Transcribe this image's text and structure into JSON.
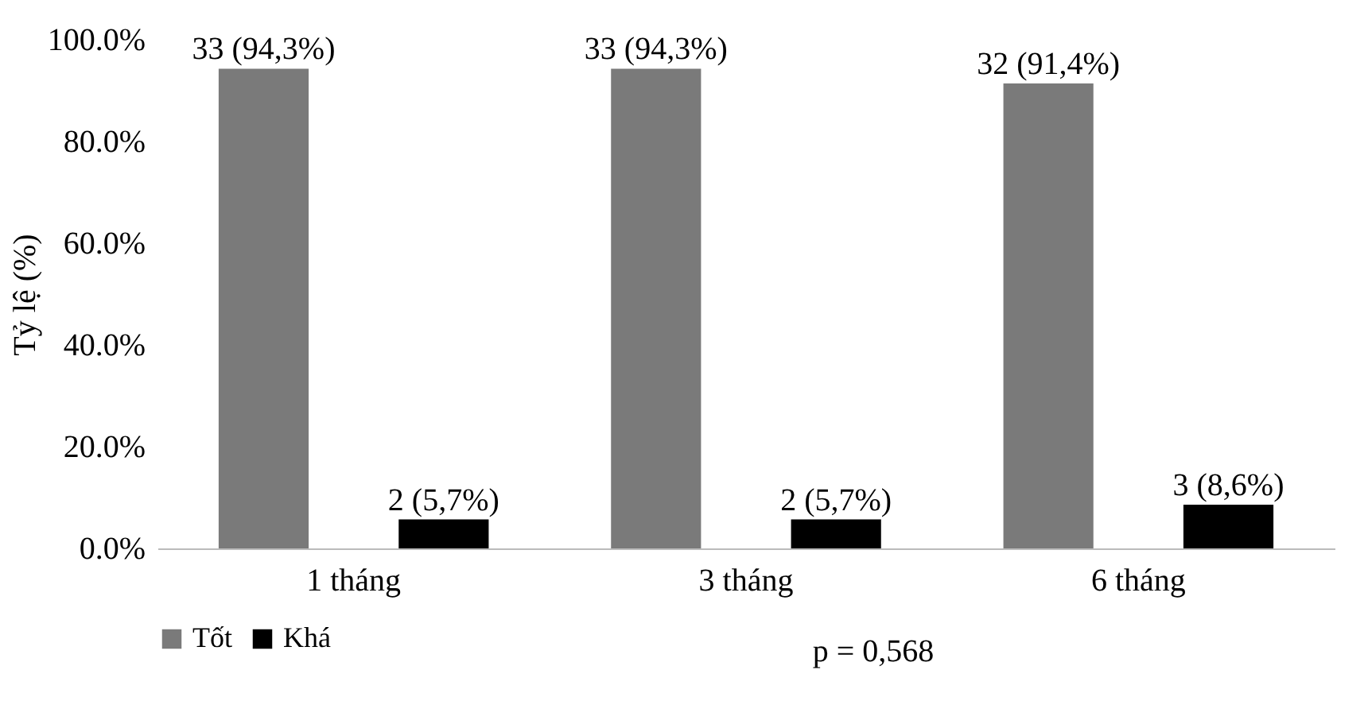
{
  "chart_data": {
    "type": "bar",
    "ylabel": "Tỷ lệ (%)",
    "categories": [
      "1 tháng",
      "3 tháng",
      "6 tháng"
    ],
    "series": [
      {
        "name": "Tốt",
        "color": "#7a7a7a",
        "values": [
          94.3,
          94.3,
          91.4
        ],
        "value_labels": [
          "33 (94,3%)",
          "33 (94,3%)",
          "32 (91,4%)"
        ]
      },
      {
        "name": "Khá",
        "color": "#000000",
        "values": [
          5.7,
          5.7,
          8.6
        ],
        "value_labels": [
          "2 (5,7%)",
          "2 (5,7%)",
          "3 (8,6%)"
        ]
      }
    ],
    "ylim": [
      0,
      100
    ],
    "yticks": [
      {
        "value": 0,
        "label": "0.0%"
      },
      {
        "value": 20,
        "label": "20.0%"
      },
      {
        "value": 40,
        "label": "40.0%"
      },
      {
        "value": 60,
        "label": "60.0%"
      },
      {
        "value": 80,
        "label": "80.0%"
      },
      {
        "value": 100,
        "label": "100.0%"
      }
    ],
    "grid": false,
    "legend": "bottom",
    "annotations": [
      "p = 0,568"
    ]
  }
}
